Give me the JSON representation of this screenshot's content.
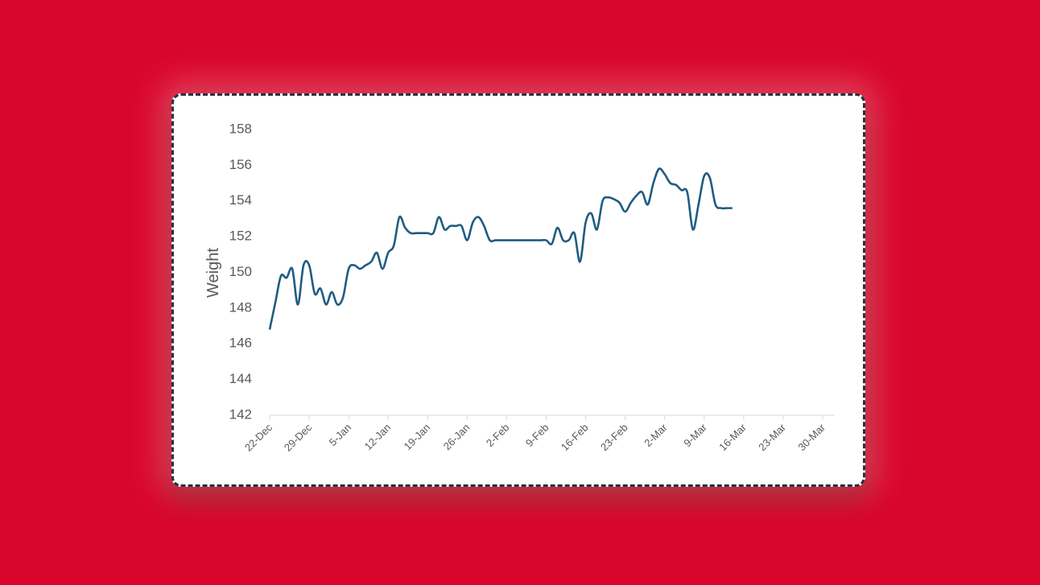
{
  "chart_data": {
    "type": "line",
    "y_label": "Weight",
    "x": [
      "22-Dec",
      "23-Dec",
      "24-Dec",
      "25-Dec",
      "26-Dec",
      "27-Dec",
      "28-Dec",
      "29-Dec",
      "30-Dec",
      "31-Dec",
      "1-Jan",
      "2-Jan",
      "3-Jan",
      "4-Jan",
      "5-Jan",
      "6-Jan",
      "7-Jan",
      "8-Jan",
      "9-Jan",
      "10-Jan",
      "11-Jan",
      "12-Jan",
      "13-Jan",
      "14-Jan",
      "15-Jan",
      "16-Jan",
      "17-Jan",
      "18-Jan",
      "19-Jan",
      "20-Jan",
      "21-Jan",
      "22-Jan",
      "23-Jan",
      "24-Jan",
      "25-Jan",
      "26-Jan",
      "27-Jan",
      "28-Jan",
      "29-Jan",
      "30-Jan",
      "31-Jan",
      "1-Feb",
      "2-Feb",
      "3-Feb",
      "4-Feb",
      "5-Feb",
      "6-Feb",
      "7-Feb",
      "8-Feb",
      "9-Feb",
      "10-Feb",
      "11-Feb",
      "12-Feb",
      "13-Feb",
      "14-Feb",
      "15-Feb",
      "16-Feb",
      "17-Feb",
      "18-Feb",
      "19-Feb",
      "20-Feb",
      "21-Feb",
      "22-Feb",
      "23-Feb",
      "24-Feb",
      "25-Feb",
      "26-Feb",
      "27-Feb",
      "28-Feb",
      "1-Mar",
      "2-Mar",
      "3-Mar",
      "4-Mar",
      "5-Mar",
      "6-Mar",
      "7-Mar",
      "8-Mar",
      "9-Mar",
      "10-Mar",
      "11-Mar",
      "12-Mar",
      "13-Mar",
      "14-Mar"
    ],
    "series": [
      {
        "color": "#1f5c82",
        "values": [
          146.8,
          148.3,
          149.8,
          149.7,
          150.2,
          148.2,
          150.4,
          150.4,
          148.8,
          149.1,
          148.2,
          148.9,
          148.2,
          148.6,
          150.2,
          150.4,
          150.2,
          150.4,
          150.6,
          151.1,
          150.2,
          151.1,
          151.5,
          153.1,
          152.5,
          152.2,
          152.2,
          152.2,
          152.2,
          152.2,
          153.1,
          152.4,
          152.6,
          152.6,
          152.6,
          151.8,
          152.8,
          153.1,
          152.6,
          151.8,
          151.8,
          151.8,
          151.8,
          151.8,
          151.8,
          151.8,
          151.8,
          151.8,
          151.8,
          151.8,
          151.6,
          152.5,
          151.8,
          151.8,
          152.2,
          150.6,
          152.8,
          153.3,
          152.4,
          154.0,
          154.2,
          154.1,
          153.9,
          153.4,
          153.9,
          154.3,
          154.5,
          153.8,
          155.0,
          155.8,
          155.5,
          155.0,
          154.9,
          154.6,
          154.5,
          152.4,
          153.8,
          155.4,
          155.3,
          153.8,
          153.6,
          153.6,
          153.6
        ]
      }
    ],
    "xticks": [
      "22-Dec",
      "29-Dec",
      "5-Jan",
      "12-Jan",
      "19-Jan",
      "26-Jan",
      "2-Feb",
      "9-Feb",
      "16-Feb",
      "23-Feb",
      "2-Mar",
      "9-Mar",
      "16-Mar",
      "23-Mar",
      "30-Mar"
    ],
    "ylim": [
      142,
      158
    ],
    "yticks": [
      142,
      144,
      146,
      148,
      150,
      152,
      154,
      156,
      158
    ]
  }
}
